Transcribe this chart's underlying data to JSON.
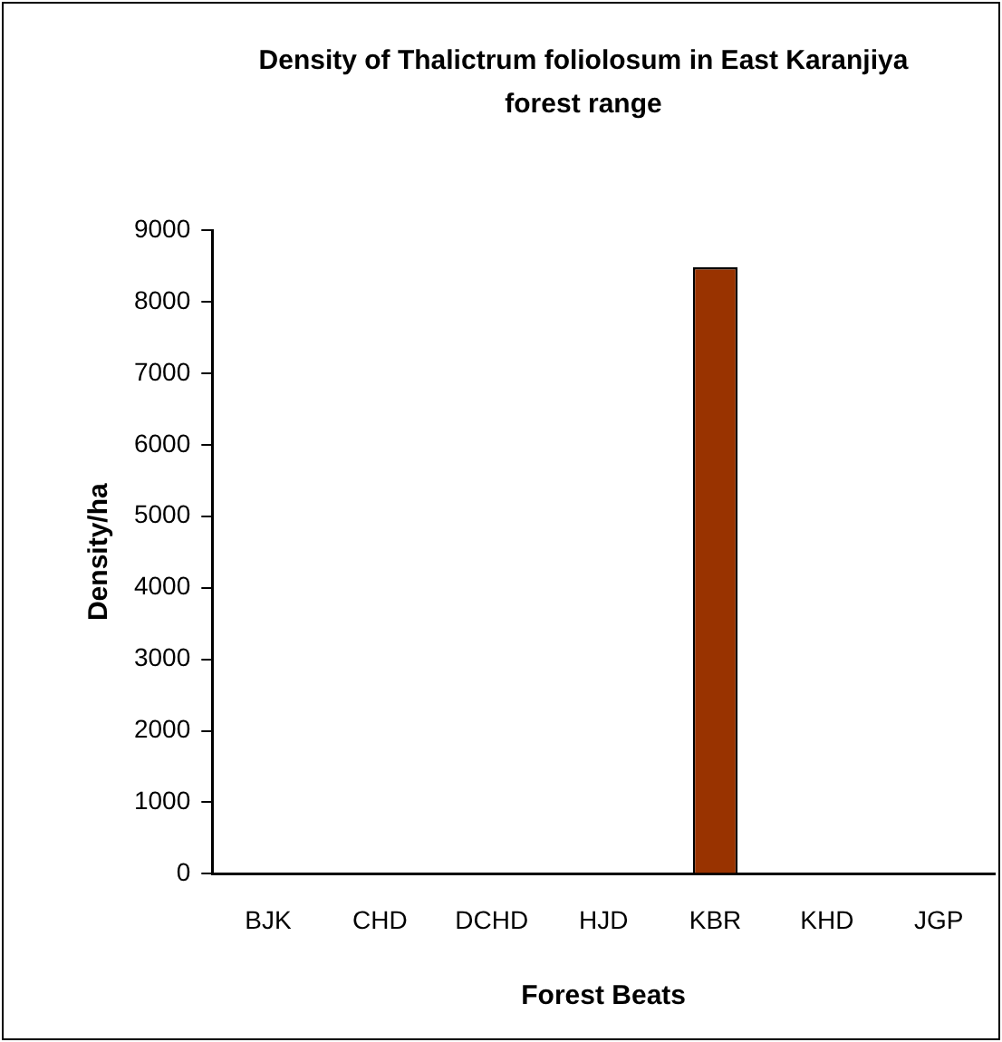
{
  "chart_data": {
    "type": "bar",
    "title": "Density of Thalictrum foliolosum in East Karanjiya forest range",
    "xlabel": "Forest Beats",
    "ylabel": "Density/ha",
    "categories": [
      "BJK",
      "CHD",
      "DCHD",
      "HJD",
      "KBR",
      "KHD",
      "JGP"
    ],
    "values": [
      0,
      0,
      0,
      0,
      8480,
      0,
      0
    ],
    "color": "#993300",
    "ylim": [
      0,
      9000
    ],
    "yticks": [
      0,
      1000,
      2000,
      3000,
      4000,
      5000,
      6000,
      7000,
      8000,
      9000
    ],
    "grid": false,
    "legend": false
  }
}
